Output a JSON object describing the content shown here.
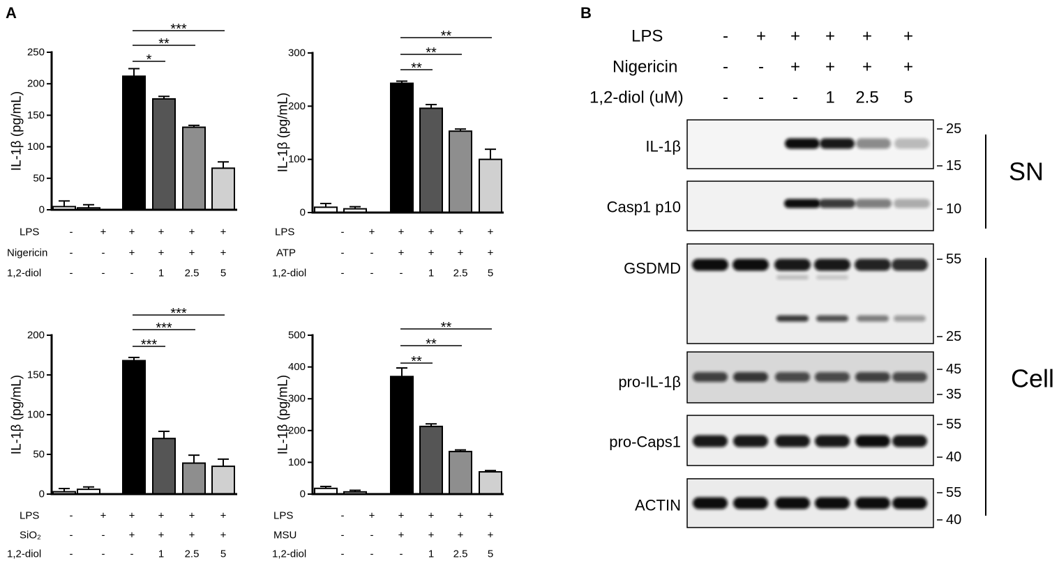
{
  "panel_a": {
    "label": "A"
  },
  "panel_b": {
    "label": "B"
  },
  "chart_data": [
    {
      "type": "bar",
      "ylabel": "IL-1β (pg/mL)",
      "ylim": [
        0,
        250
      ],
      "yticks": [
        0,
        50,
        100,
        150,
        200,
        250
      ],
      "grid": false,
      "values": [
        5,
        3,
        212,
        176,
        131,
        66
      ],
      "errors": [
        9,
        5,
        12,
        4,
        3,
        10
      ],
      "bar_colors": [
        "#ffffff",
        "#ffffff",
        "#000000",
        "#555555",
        "#8e8e8e",
        "#d0d0d0"
      ],
      "conditions": [
        {
          "label": "LPS",
          "values": [
            "-",
            "+",
            "+",
            "+",
            "+",
            "+"
          ]
        },
        {
          "label": "Nigericin",
          "values": [
            "-",
            "-",
            "+",
            "+",
            "+",
            "+"
          ]
        },
        {
          "label": "1,2-diol",
          "values": [
            "-",
            "-",
            "-",
            "1",
            "2.5",
            "5"
          ]
        }
      ],
      "significance": [
        {
          "from": 2,
          "to": 3,
          "label": "*"
        },
        {
          "from": 2,
          "to": 4,
          "label": "**"
        },
        {
          "from": 2,
          "to": 5,
          "label": "***"
        }
      ]
    },
    {
      "type": "bar",
      "ylabel": "IL-1β (pg/mL)",
      "ylim": [
        0,
        300
      ],
      "yticks": [
        0,
        100,
        200,
        300
      ],
      "grid": false,
      "values": [
        10,
        7,
        243,
        196,
        153,
        100
      ],
      "errors": [
        7,
        4,
        4,
        7,
        4,
        19
      ],
      "bar_colors": [
        "#ffffff",
        "#ffffff",
        "#000000",
        "#555555",
        "#8e8e8e",
        "#d0d0d0"
      ],
      "conditions": [
        {
          "label": "LPS",
          "values": [
            "-",
            "+",
            "+",
            "+",
            "+",
            "+"
          ]
        },
        {
          "label": "ATP",
          "values": [
            "-",
            "-",
            "+",
            "+",
            "+",
            "+"
          ]
        },
        {
          "label": "1,2-diol",
          "values": [
            "-",
            "-",
            "-",
            "1",
            "2.5",
            "5"
          ]
        }
      ],
      "significance": [
        {
          "from": 2,
          "to": 3,
          "label": "**"
        },
        {
          "from": 2,
          "to": 4,
          "label": "**"
        },
        {
          "from": 2,
          "to": 5,
          "label": "**"
        }
      ]
    },
    {
      "type": "bar",
      "ylabel": "IL-1β (pg/mL)",
      "ylim": [
        0,
        200
      ],
      "yticks": [
        0,
        50,
        100,
        150,
        200
      ],
      "grid": false,
      "values": [
        3,
        6,
        168,
        70,
        39,
        35
      ],
      "errors": [
        4,
        3,
        4,
        9,
        10,
        9
      ],
      "bar_colors": [
        "#ffffff",
        "#ffffff",
        "#000000",
        "#555555",
        "#8e8e8e",
        "#d0d0d0"
      ],
      "conditions": [
        {
          "label": "LPS",
          "values": [
            "-",
            "+",
            "+",
            "+",
            "+",
            "+"
          ]
        },
        {
          "label": "SiO₂",
          "values": [
            "-",
            "-",
            "+",
            "+",
            "+",
            "+"
          ]
        },
        {
          "label": "1,2-diol",
          "values": [
            "-",
            "-",
            "-",
            "1",
            "2.5",
            "5"
          ]
        }
      ],
      "significance": [
        {
          "from": 2,
          "to": 3,
          "label": "***"
        },
        {
          "from": 2,
          "to": 4,
          "label": "***"
        },
        {
          "from": 2,
          "to": 5,
          "label": "***"
        }
      ]
    },
    {
      "type": "bar",
      "ylabel": "IL-1β (pg/mL)",
      "ylim": [
        0,
        500
      ],
      "yticks": [
        0,
        100,
        200,
        300,
        400,
        500
      ],
      "grid": false,
      "values": [
        18,
        7,
        370,
        213,
        134,
        70
      ],
      "errors": [
        6,
        5,
        27,
        8,
        5,
        4
      ],
      "bar_colors": [
        "#ffffff",
        "#ffffff",
        "#000000",
        "#555555",
        "#8e8e8e",
        "#d0d0d0"
      ],
      "conditions": [
        {
          "label": "LPS",
          "values": [
            "-",
            "+",
            "+",
            "+",
            "+",
            "+"
          ]
        },
        {
          "label": "MSU",
          "values": [
            "-",
            "-",
            "+",
            "+",
            "+",
            "+"
          ]
        },
        {
          "label": "1,2-diol",
          "values": [
            "-",
            "-",
            "-",
            "1",
            "2.5",
            "5"
          ]
        }
      ],
      "significance": [
        {
          "from": 2,
          "to": 3,
          "label": "**"
        },
        {
          "from": 2,
          "to": 4,
          "label": "**"
        },
        {
          "from": 2,
          "to": 5,
          "label": "**"
        }
      ]
    }
  ],
  "blot": {
    "treatments": [
      {
        "label": "LPS",
        "values": [
          "-",
          "+",
          "+",
          "+",
          "+",
          "+"
        ]
      },
      {
        "label": "Nigericin",
        "values": [
          "-",
          "-",
          "+",
          "+",
          "+",
          "+"
        ]
      },
      {
        "label": "1,2-diol (uM)",
        "values": [
          "-",
          "-",
          "-",
          "1",
          "2.5",
          "5"
        ]
      }
    ],
    "panels": [
      {
        "label": "IL-1β",
        "markers": [
          "25",
          "15"
        ],
        "band_intensity": [
          [
            0,
            0,
            1,
            0.95,
            0.45,
            0.25
          ]
        ]
      },
      {
        "label": "Casp1 p10",
        "markers": [
          "10"
        ],
        "band_intensity": [
          [
            0,
            0,
            1,
            0.8,
            0.5,
            0.3
          ]
        ]
      },
      {
        "label": "GSDMD",
        "markers": [
          "55",
          "25"
        ],
        "band_intensity": [
          [
            1,
            1,
            0.95,
            0.95,
            0.9,
            0.85
          ],
          [
            0,
            0,
            0.22,
            0.18,
            0,
            0
          ],
          [
            0,
            0,
            0.8,
            0.7,
            0.5,
            0.35
          ]
        ]
      },
      {
        "label": "pro-IL-1β",
        "markers": [
          "45",
          "35"
        ],
        "band_intensity": [
          [
            0.75,
            0.8,
            0.7,
            0.7,
            0.75,
            0.7
          ]
        ]
      },
      {
        "label": "pro-Caps1",
        "markers": [
          "55",
          "40"
        ],
        "band_intensity": [
          [
            0.95,
            0.95,
            0.95,
            0.95,
            1,
            0.95
          ]
        ]
      },
      {
        "label": "ACTIN",
        "markers": [
          "55",
          "40"
        ],
        "band_intensity": [
          [
            1,
            1,
            1,
            1,
            1,
            1
          ]
        ]
      }
    ],
    "groups": [
      {
        "label": "SN"
      },
      {
        "label": "Cell"
      }
    ]
  }
}
